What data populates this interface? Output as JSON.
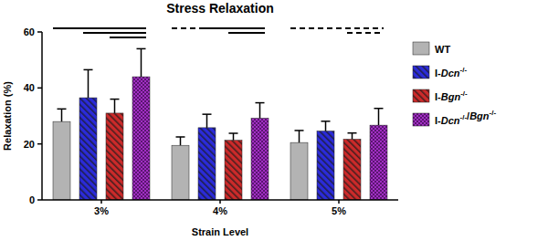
{
  "chart_data": {
    "type": "bar",
    "title": "Stress Relaxation",
    "x_label": "Strain Level",
    "y_label": "Relaxation (%)",
    "categories": [
      "3%",
      "4%",
      "5%"
    ],
    "series": [
      {
        "name": "WT",
        "color": "#b3b3b3",
        "values": [
          28,
          19.5,
          20.5
        ],
        "errors": [
          4.5,
          3,
          4.3
        ]
      },
      {
        "name": "I-Dcn-/-",
        "color": "#2b2bd9",
        "values": [
          36.5,
          25.8,
          24.6
        ],
        "errors": [
          10,
          4.8,
          3.5
        ]
      },
      {
        "name": "I-Bgn-/-",
        "color": "#cc2a2a",
        "values": [
          31,
          21.3,
          21.7
        ],
        "errors": [
          5,
          2.5,
          2.2
        ]
      },
      {
        "name": "I-Dcn-/-/Bgn-/-",
        "color": "#a22fc4",
        "values": [
          44,
          29.2,
          26.7
        ],
        "errors": [
          10,
          5.5,
          6
        ]
      }
    ],
    "significance": [
      {
        "category": "3%",
        "groups": [
          "WT",
          "I-Dcn-/-/Bgn-/-"
        ],
        "line_style": "solid"
      },
      {
        "category": "3%",
        "groups": [
          "I-Dcn-/-",
          "I-Dcn-/-/Bgn-/-"
        ],
        "line_style": "solid"
      },
      {
        "category": "3%",
        "groups": [
          "I-Bgn-/-",
          "I-Dcn-/-/Bgn-/-"
        ],
        "line_style": "solid"
      },
      {
        "category": "4%",
        "groups": [
          "WT",
          "I-Dcn-/-"
        ],
        "line_style": "dashed"
      },
      {
        "category": "4%",
        "groups": [
          "I-Dcn-/-",
          "I-Dcn-/-/Bgn-/-"
        ],
        "line_style": "solid"
      },
      {
        "category": "4%",
        "groups": [
          "I-Bgn-/-",
          "I-Dcn-/-/Bgn-/-"
        ],
        "line_style": "solid"
      },
      {
        "category": "5%",
        "groups": [
          "WT",
          "I-Dcn-/-/Bgn-/-"
        ],
        "line_style": "dashed"
      },
      {
        "category": "5%",
        "groups": [
          "I-Bgn-/-",
          "I-Dcn-/-/Bgn-/-"
        ],
        "line_style": "dashed"
      }
    ],
    "ylim": [
      0,
      60
    ],
    "yticks": [
      0,
      20,
      40,
      60
    ],
    "grid": false,
    "legend": "right"
  }
}
